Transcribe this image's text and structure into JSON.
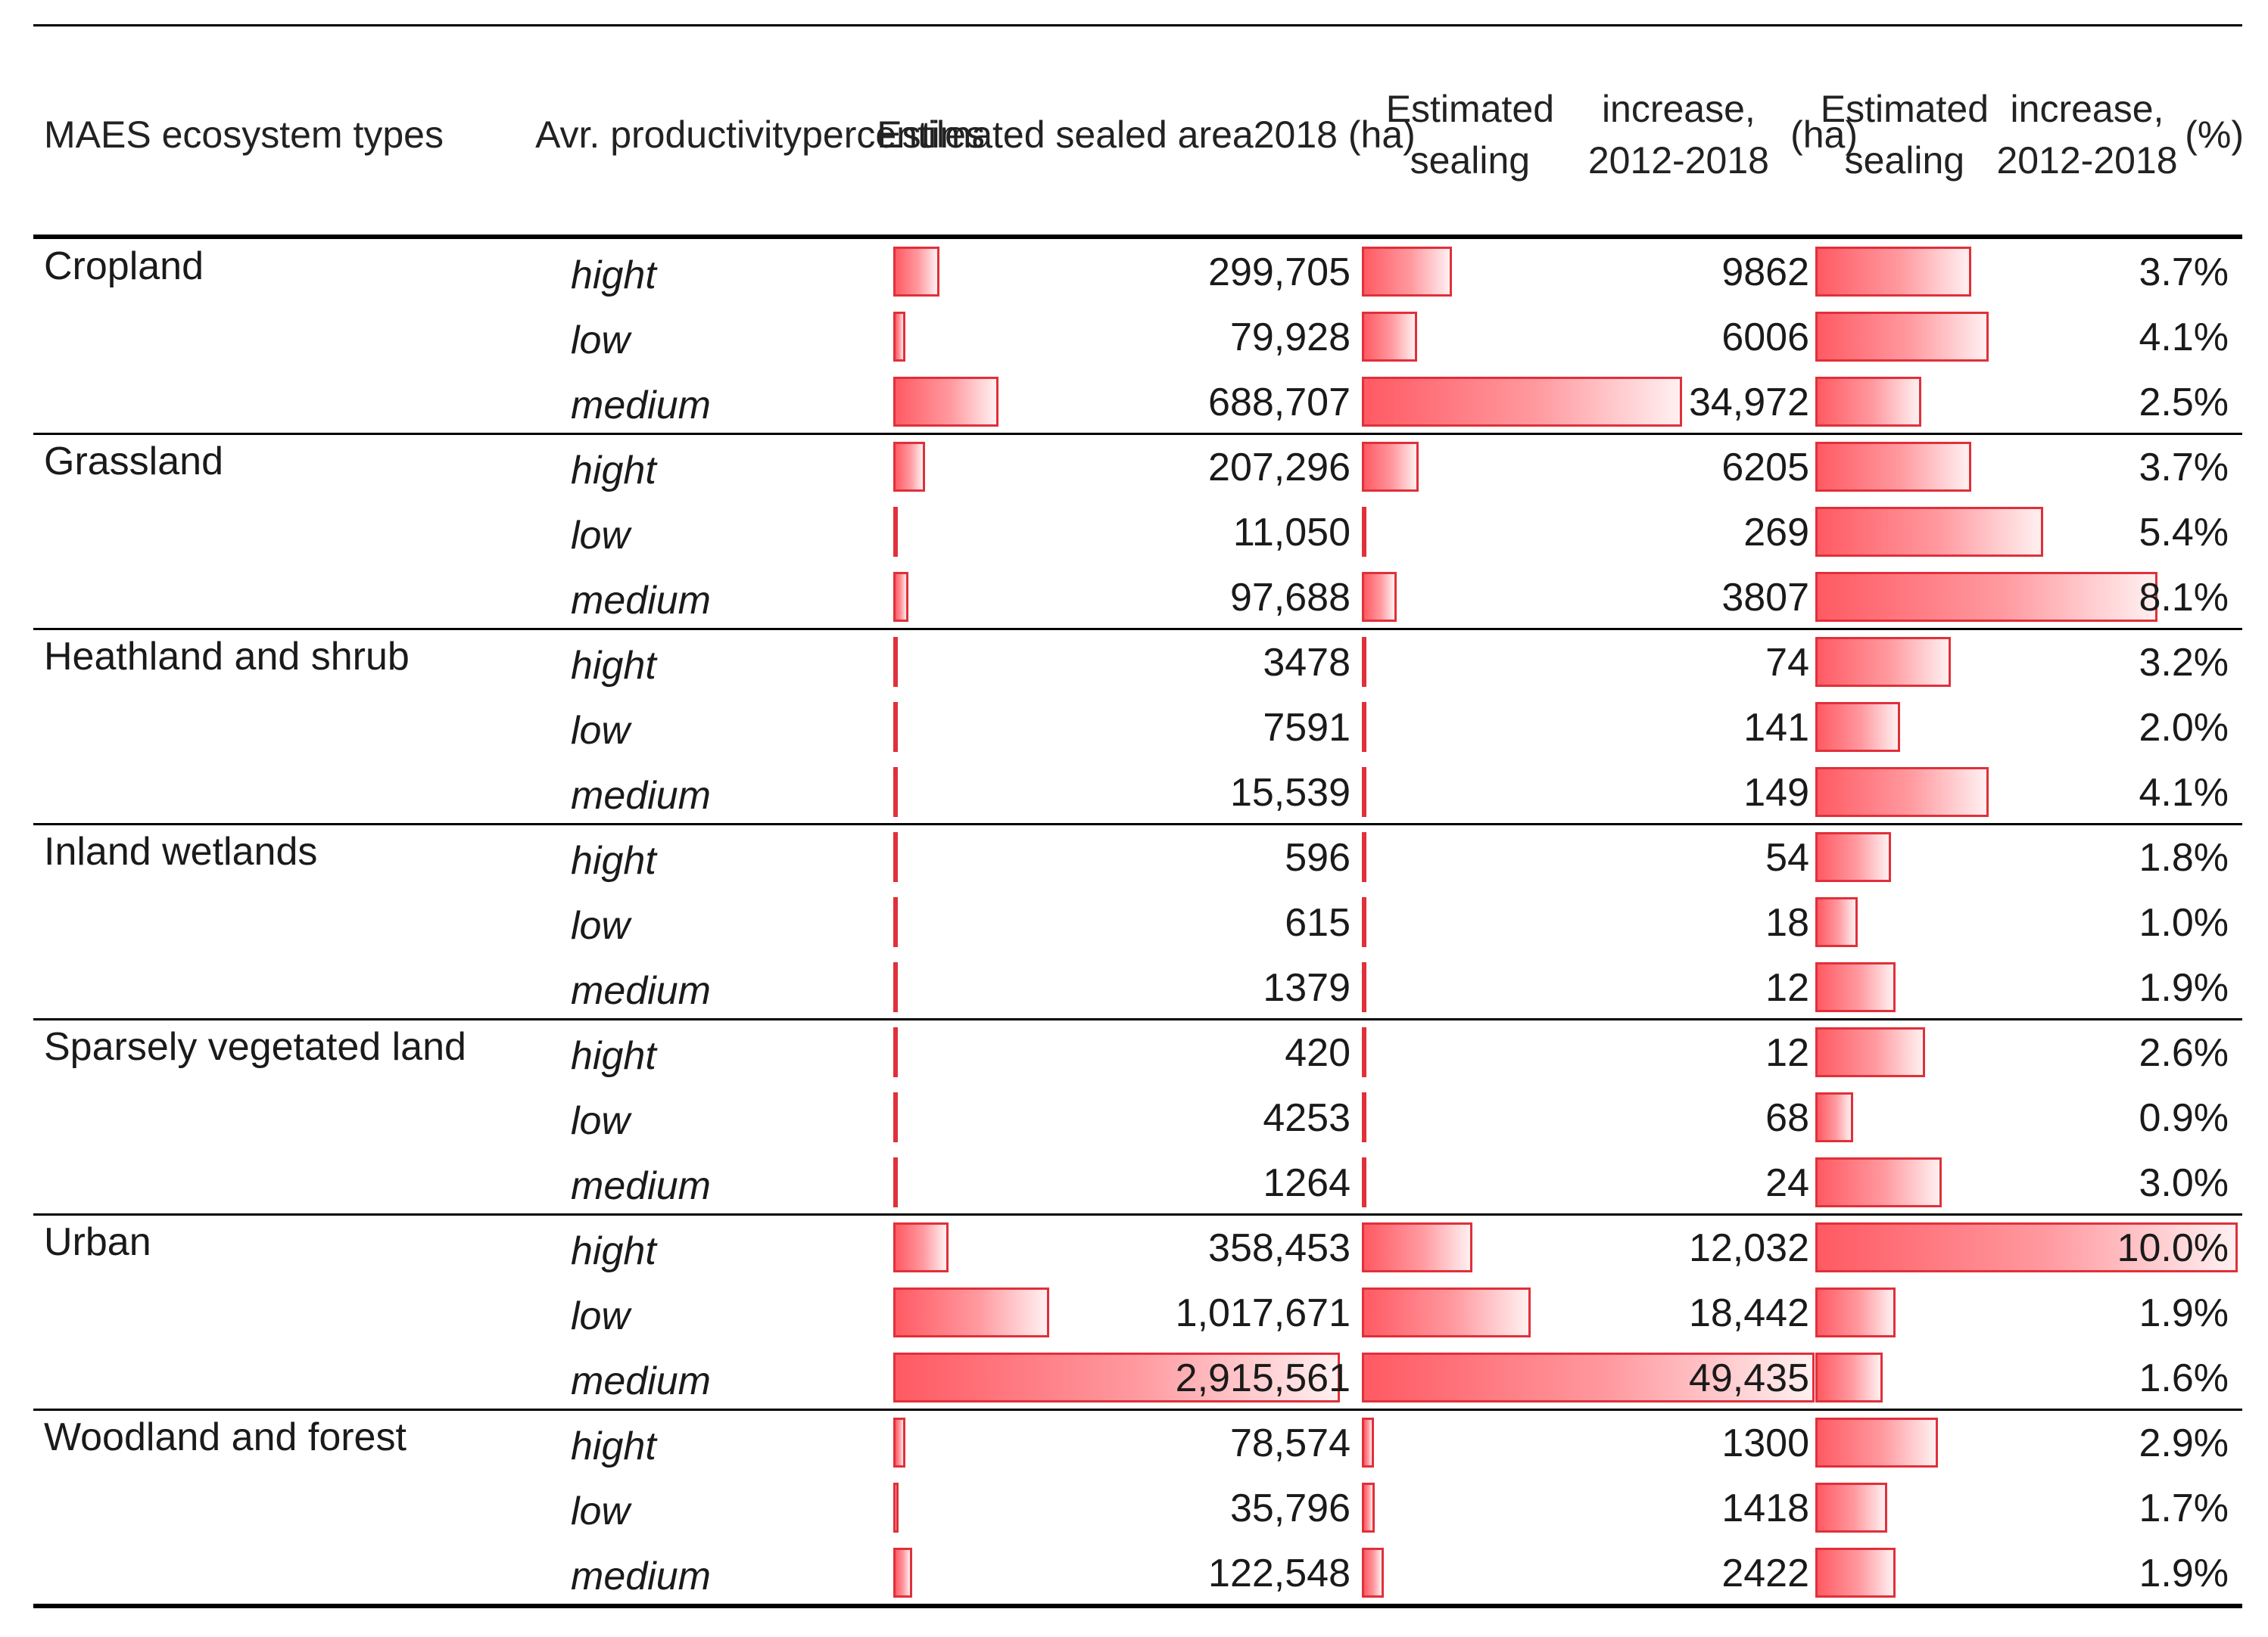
{
  "chart_data": {
    "type": "table",
    "columns": [
      "MAES ecosystem types",
      "Avr. productivity percentiles",
      "Estimated sealed area 2018 (ha)",
      "Estimated sealing increase, 2012-2018 (ha)",
      "Estimated sealing increase, 2012-2018 (%)"
    ],
    "header_lines": [
      [
        "MAES ecosystem types"
      ],
      [
        "Avr. productivity",
        "percentiles"
      ],
      [
        "Estimated sealed area",
        "2018 (ha)"
      ],
      [
        "Estimated sealing",
        "increase, 2012-2018",
        "(ha)"
      ],
      [
        "Estimated sealing",
        "increase, 2012-2018",
        "(%)"
      ]
    ],
    "bar_color": "#ff5a63",
    "bar_border_color": "#e0303a",
    "groups": [
      {
        "name": "Cropland",
        "rows": [
          {
            "percentile": "hight",
            "area": 299705,
            "area_label": "299,705",
            "inc": 9862,
            "inc_label": "9862",
            "pct": 3.7,
            "pct_label": "3.7%"
          },
          {
            "percentile": "low",
            "area": 79928,
            "area_label": "79,928",
            "inc": 6006,
            "inc_label": "6006",
            "pct": 4.1,
            "pct_label": "4.1%"
          },
          {
            "percentile": "medium",
            "area": 688707,
            "area_label": "688,707",
            "inc": 34972,
            "inc_label": "34,972",
            "pct": 2.5,
            "pct_label": "2.5%"
          }
        ]
      },
      {
        "name": "Grassland",
        "rows": [
          {
            "percentile": "hight",
            "area": 207296,
            "area_label": "207,296",
            "inc": 6205,
            "inc_label": "6205",
            "pct": 3.7,
            "pct_label": "3.7%"
          },
          {
            "percentile": "low",
            "area": 11050,
            "area_label": "11,050",
            "inc": 269,
            "inc_label": "269",
            "pct": 5.4,
            "pct_label": "5.4%"
          },
          {
            "percentile": "medium",
            "area": 97688,
            "area_label": "97,688",
            "inc": 3807,
            "inc_label": "3807",
            "pct": 8.1,
            "pct_label": "8.1%"
          }
        ]
      },
      {
        "name": "Heathland and shrub",
        "rows": [
          {
            "percentile": "hight",
            "area": 3478,
            "area_label": "3478",
            "inc": 74,
            "inc_label": "74",
            "pct": 3.2,
            "pct_label": "3.2%"
          },
          {
            "percentile": "low",
            "area": 7591,
            "area_label": "7591",
            "inc": 141,
            "inc_label": "141",
            "pct": 2.0,
            "pct_label": "2.0%"
          },
          {
            "percentile": "medium",
            "area": 15539,
            "area_label": "15,539",
            "inc": 149,
            "inc_label": "149",
            "pct": 4.1,
            "pct_label": "4.1%"
          }
        ]
      },
      {
        "name": "Inland wetlands",
        "rows": [
          {
            "percentile": "hight",
            "area": 596,
            "area_label": "596",
            "inc": 54,
            "inc_label": "54",
            "pct": 1.8,
            "pct_label": "1.8%"
          },
          {
            "percentile": "low",
            "area": 615,
            "area_label": "615",
            "inc": 18,
            "inc_label": "18",
            "pct": 1.0,
            "pct_label": "1.0%"
          },
          {
            "percentile": "medium",
            "area": 1379,
            "area_label": "1379",
            "inc": 12,
            "inc_label": "12",
            "pct": 1.9,
            "pct_label": "1.9%"
          }
        ]
      },
      {
        "name": "Sparsely vegetated land",
        "rows": [
          {
            "percentile": "hight",
            "area": 420,
            "area_label": "420",
            "inc": 12,
            "inc_label": "12",
            "pct": 2.6,
            "pct_label": "2.6%"
          },
          {
            "percentile": "low",
            "area": 4253,
            "area_label": "4253",
            "inc": 68,
            "inc_label": "68",
            "pct": 0.9,
            "pct_label": "0.9%"
          },
          {
            "percentile": "medium",
            "area": 1264,
            "area_label": "1264",
            "inc": 24,
            "inc_label": "24",
            "pct": 3.0,
            "pct_label": "3.0%"
          }
        ]
      },
      {
        "name": "Urban",
        "rows": [
          {
            "percentile": "hight",
            "area": 358453,
            "area_label": "358,453",
            "inc": 12032,
            "inc_label": "12,032",
            "pct": 10.0,
            "pct_label": "10.0%"
          },
          {
            "percentile": "low",
            "area": 1017671,
            "area_label": "1,017,671",
            "inc": 18442,
            "inc_label": "18,442",
            "pct": 1.9,
            "pct_label": "1.9%"
          },
          {
            "percentile": "medium",
            "area": 2915561,
            "area_label": "2,915,561",
            "inc": 49435,
            "inc_label": "49,435",
            "pct": 1.6,
            "pct_label": "1.6%"
          }
        ]
      },
      {
        "name": "Woodland and forest",
        "rows": [
          {
            "percentile": "hight",
            "area": 78574,
            "area_label": "78,574",
            "inc": 1300,
            "inc_label": "1300",
            "pct": 2.9,
            "pct_label": "2.9%"
          },
          {
            "percentile": "low",
            "area": 35796,
            "area_label": "35,796",
            "inc": 1418,
            "inc_label": "1418",
            "pct": 1.7,
            "pct_label": "1.7%"
          },
          {
            "percentile": "medium",
            "area": 122548,
            "area_label": "122,548",
            "inc": 2422,
            "inc_label": "2422",
            "pct": 1.9,
            "pct_label": "1.9%"
          }
        ]
      }
    ]
  }
}
